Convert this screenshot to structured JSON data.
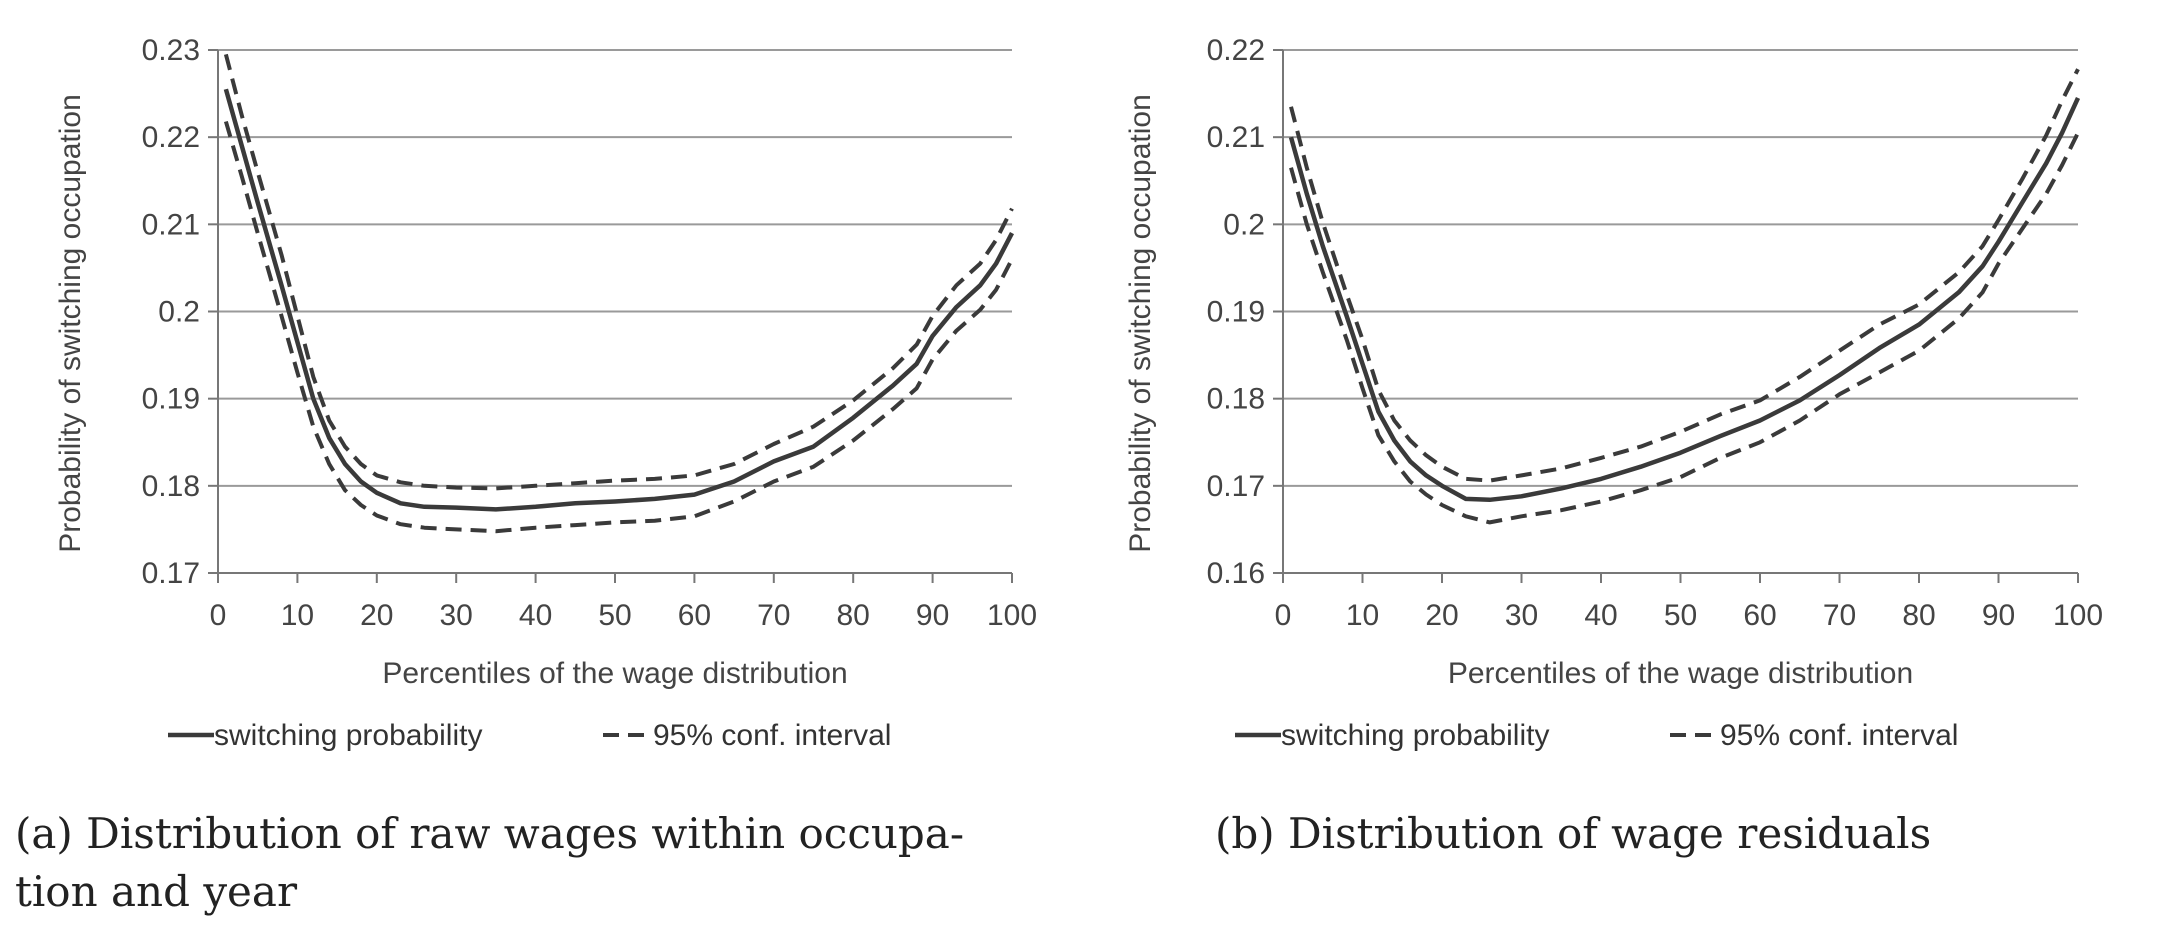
{
  "chart_data": [
    {
      "type": "line",
      "caption_lines": [
        "(a) Distribution of raw wages within occupa-",
        "tion and year"
      ],
      "xlabel": "Percentiles of the wage distribution",
      "ylabel": "Probability of switching occupation",
      "xlim": [
        0,
        100
      ],
      "ylim": [
        0.17,
        0.23
      ],
      "xticks": [
        "0",
        "10",
        "20",
        "30",
        "40",
        "50",
        "60",
        "70",
        "80",
        "90",
        "100"
      ],
      "yticks": [
        "0.17",
        "0.18",
        "0.19",
        "0.2",
        "0.21",
        "0.22",
        "0.23"
      ],
      "grid": "horizontal",
      "legend_position": "bottom",
      "color": "#3a3a3a",
      "series": [
        {
          "name": "switching probability",
          "style": "solid",
          "x": [
            1,
            3,
            5,
            8,
            10,
            12,
            14,
            16,
            18,
            20,
            23,
            26,
            30,
            35,
            40,
            45,
            50,
            55,
            60,
            65,
            70,
            75,
            80,
            85,
            88,
            90,
            93,
            96,
            98,
            100
          ],
          "y": [
            0.2255,
            0.219,
            0.2125,
            0.203,
            0.1965,
            0.19,
            0.1855,
            0.1825,
            0.1805,
            0.1792,
            0.178,
            0.1776,
            0.1775,
            0.1773,
            0.1776,
            0.178,
            0.1782,
            0.1785,
            0.179,
            0.1805,
            0.1828,
            0.1845,
            0.1878,
            0.1915,
            0.194,
            0.1972,
            0.2005,
            0.203,
            0.2055,
            0.209
          ]
        },
        {
          "name": "95% conf. interval",
          "style": "dashed",
          "x": [
            1,
            3,
            5,
            8,
            10,
            12,
            14,
            16,
            18,
            20,
            23,
            26,
            30,
            35,
            40,
            45,
            50,
            55,
            60,
            65,
            70,
            75,
            80,
            85,
            88,
            90,
            93,
            96,
            98,
            100
          ],
          "y": [
            0.2295,
            0.2225,
            0.216,
            0.2065,
            0.1995,
            0.1925,
            0.1875,
            0.1845,
            0.1825,
            0.1812,
            0.1804,
            0.18,
            0.1798,
            0.1797,
            0.18,
            0.1803,
            0.1806,
            0.1808,
            0.1812,
            0.1825,
            0.1848,
            0.1868,
            0.1898,
            0.1935,
            0.1962,
            0.1995,
            0.203,
            0.2055,
            0.2082,
            0.2118
          ]
        },
        {
          "name": "",
          "style": "dashed",
          "x": [
            1,
            3,
            5,
            8,
            10,
            12,
            14,
            16,
            18,
            20,
            23,
            26,
            30,
            35,
            40,
            45,
            50,
            55,
            60,
            65,
            70,
            75,
            80,
            85,
            88,
            90,
            93,
            96,
            98,
            100
          ],
          "y": [
            0.2218,
            0.2155,
            0.209,
            0.1995,
            0.193,
            0.1868,
            0.1825,
            0.1795,
            0.1778,
            0.1766,
            0.1756,
            0.1752,
            0.175,
            0.1748,
            0.1752,
            0.1755,
            0.1758,
            0.176,
            0.1765,
            0.1782,
            0.1805,
            0.1822,
            0.1852,
            0.1888,
            0.1912,
            0.1945,
            0.1978,
            0.2002,
            0.2025,
            0.206
          ]
        }
      ]
    },
    {
      "type": "line",
      "caption_lines": [
        "(b) Distribution of wage residuals"
      ],
      "xlabel": "Percentiles of the wage distribution",
      "ylabel": "Probability of switching occupation",
      "xlim": [
        0,
        100
      ],
      "ylim": [
        0.16,
        0.22
      ],
      "xticks": [
        "0",
        "10",
        "20",
        "30",
        "40",
        "50",
        "60",
        "70",
        "80",
        "90",
        "100"
      ],
      "yticks": [
        "0.16",
        "0.17",
        "0.18",
        "0.19",
        "0.2",
        "0.21",
        "0.22"
      ],
      "grid": "horizontal",
      "legend_position": "bottom",
      "color": "#3a3a3a",
      "series": [
        {
          "name": "switching probability",
          "style": "solid",
          "x": [
            1,
            3,
            5,
            8,
            10,
            12,
            14,
            16,
            18,
            20,
            23,
            26,
            30,
            35,
            40,
            45,
            50,
            55,
            60,
            65,
            70,
            75,
            80,
            85,
            88,
            90,
            93,
            96,
            98,
            100
          ],
          "y": [
            0.21,
            0.2035,
            0.1975,
            0.1895,
            0.184,
            0.1785,
            0.1752,
            0.1728,
            0.1712,
            0.17,
            0.1685,
            0.1684,
            0.1688,
            0.1697,
            0.1708,
            0.1722,
            0.1738,
            0.1757,
            0.1775,
            0.1798,
            0.1827,
            0.1858,
            0.1885,
            0.1922,
            0.1952,
            0.198,
            0.2025,
            0.207,
            0.2105,
            0.2145
          ]
        },
        {
          "name": "95% conf. interval",
          "style": "dashed",
          "x": [
            1,
            3,
            5,
            8,
            10,
            12,
            14,
            16,
            18,
            20,
            23,
            26,
            30,
            35,
            40,
            45,
            50,
            55,
            60,
            65,
            70,
            75,
            80,
            85,
            88,
            90,
            93,
            96,
            98,
            100
          ],
          "y": [
            0.2135,
            0.2065,
            0.2002,
            0.192,
            0.1868,
            0.181,
            0.1775,
            0.1752,
            0.1735,
            0.1722,
            0.1708,
            0.1706,
            0.1712,
            0.172,
            0.1732,
            0.1745,
            0.1762,
            0.1782,
            0.1798,
            0.1825,
            0.1855,
            0.1885,
            0.1908,
            0.1945,
            0.1975,
            0.2005,
            0.2052,
            0.2102,
            0.2142,
            0.2178
          ]
        },
        {
          "name": "",
          "style": "dashed",
          "x": [
            1,
            3,
            5,
            8,
            10,
            12,
            14,
            16,
            18,
            20,
            23,
            26,
            30,
            35,
            40,
            45,
            50,
            55,
            60,
            65,
            70,
            75,
            80,
            85,
            88,
            90,
            93,
            96,
            98,
            100
          ],
          "y": [
            0.2065,
            0.2,
            0.1945,
            0.1868,
            0.1812,
            0.1758,
            0.1728,
            0.1705,
            0.169,
            0.1678,
            0.1665,
            0.1658,
            0.1665,
            0.1672,
            0.1682,
            0.1695,
            0.171,
            0.1732,
            0.175,
            0.1775,
            0.1805,
            0.183,
            0.1855,
            0.1892,
            0.1922,
            0.1955,
            0.1995,
            0.2035,
            0.2068,
            0.2105
          ]
        }
      ]
    }
  ]
}
